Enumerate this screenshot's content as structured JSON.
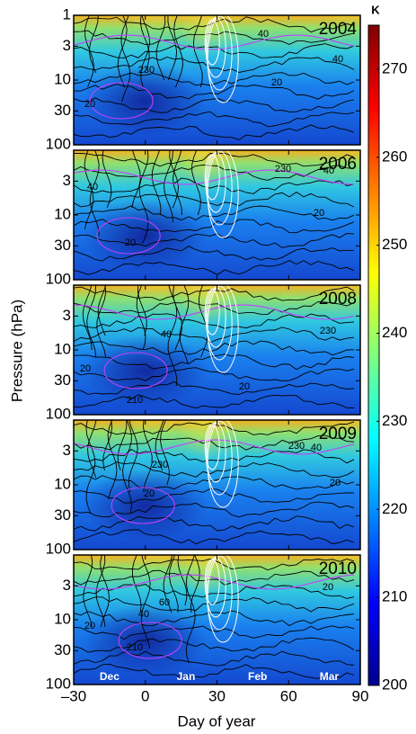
{
  "chart_data": {
    "type": "contour",
    "x_label": "Day of year",
    "y_label": "Pressure (hPa)",
    "xlim": [
      -30,
      90
    ],
    "xticks": [
      {
        "value": -30,
        "label": "–30"
      },
      0,
      30,
      60,
      90
    ],
    "ylim": [
      1,
      100
    ],
    "log_y": true,
    "month_labels": [
      "Dec",
      "Jan",
      "Feb",
      "Mar"
    ],
    "panels": [
      {
        "label": "2004",
        "yticks": [
          1,
          3,
          10,
          30,
          100
        ],
        "contour_labels": [
          "40",
          "40",
          "230",
          "20",
          "20"
        ]
      },
      {
        "label": "2006",
        "yticks": [
          3,
          10,
          30,
          100
        ],
        "contour_labels": [
          "40",
          "230",
          "40",
          "20",
          "20"
        ]
      },
      {
        "label": "2008",
        "yticks": [
          3,
          10,
          30,
          100
        ],
        "contour_labels": [
          "40",
          "230",
          "20",
          "20",
          "210"
        ]
      },
      {
        "label": "2009",
        "yticks": [
          3,
          10,
          30,
          100
        ],
        "contour_labels": [
          "230",
          "230",
          "40",
          "20",
          "20"
        ]
      },
      {
        "label": "2010",
        "yticks": [
          3,
          10,
          30,
          100
        ],
        "contour_labels": [
          "60",
          "20",
          "20",
          "40",
          "210"
        ]
      }
    ],
    "colorbar": {
      "label": "K",
      "lim": [
        200,
        275
      ],
      "ticks": [
        200,
        210,
        220,
        230,
        240,
        250,
        260,
        270
      ]
    }
  }
}
